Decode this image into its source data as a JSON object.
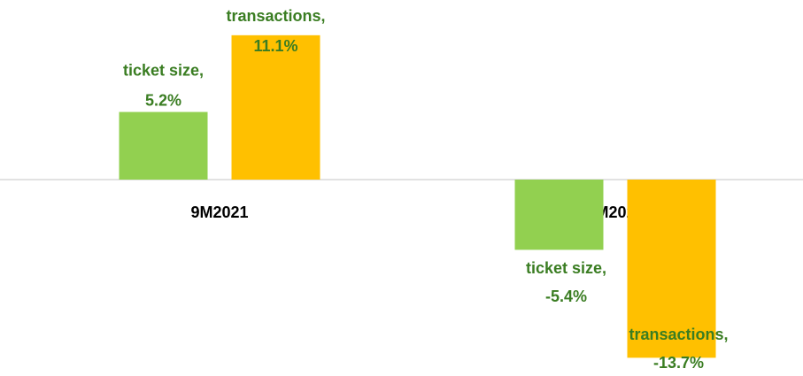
{
  "chart_data": {
    "type": "bar",
    "categories": [
      "9M2021",
      "9M2020"
    ],
    "series": [
      {
        "name": "ticket size,",
        "color": "#92d050",
        "values": [
          5.2,
          -5.4
        ],
        "value_labels": [
          "5.2%",
          "-5.4%"
        ]
      },
      {
        "name": "transactions,",
        "color": "#ffc000",
        "values": [
          11.1,
          -13.7
        ],
        "value_labels": [
          "11.1%",
          "-13.7%"
        ]
      }
    ]
  }
}
